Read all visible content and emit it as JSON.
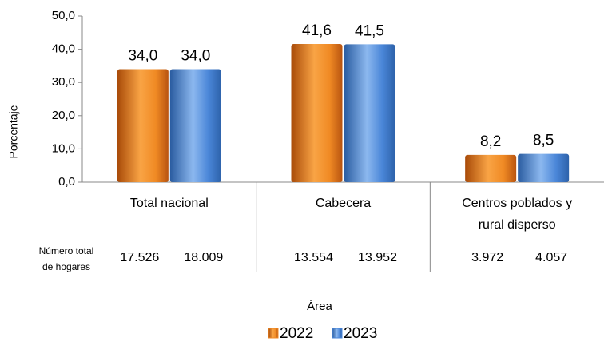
{
  "chart_data": {
    "type": "bar",
    "categories": [
      "Total nacional",
      "Cabecera",
      "Centros poblados y rural disperso"
    ],
    "series": [
      {
        "name": "2022",
        "color": "#f08a24",
        "values": [
          34.0,
          41.6,
          8.2
        ],
        "value_labels": [
          "34,0",
          "41,6",
          "8,2"
        ]
      },
      {
        "name": "2023",
        "color": "#4a86d8",
        "values": [
          34.0,
          41.5,
          8.5
        ],
        "value_labels": [
          "34,0",
          "41,5",
          "8,5"
        ]
      }
    ],
    "ylim": [
      0,
      50
    ],
    "yticks": [
      {
        "value": 0,
        "label": "0,0"
      },
      {
        "value": 10,
        "label": "10,0"
      },
      {
        "value": 20,
        "label": "20,0"
      },
      {
        "value": 30,
        "label": "30,0"
      },
      {
        "value": 40,
        "label": "40,0"
      },
      {
        "value": 50,
        "label": "50,0"
      }
    ],
    "y_label": "Porcentaje",
    "x_label": "Área",
    "legend": "bottom",
    "grid": false,
    "households": {
      "label": "Número total de hogares",
      "rows": [
        [
          "17.526",
          "18.009"
        ],
        [
          "13.554",
          "13.952"
        ],
        [
          "3.972",
          "4.057"
        ]
      ]
    }
  }
}
